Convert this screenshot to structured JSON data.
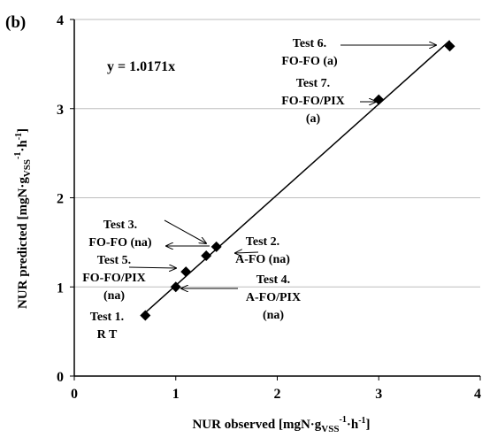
{
  "chart_data": {
    "type": "scatter",
    "panel_label": "(b)",
    "equation": "y = 1.0171x",
    "xlabel": {
      "main": "NUR observed [mgN·g",
      "sub": "VSS",
      "sup": "-1",
      "tail": "·h",
      "tail_sup": "-1",
      "close": "]"
    },
    "ylabel": {
      "main": "NUR predicted [mgN·g",
      "sub": "VSS",
      "sup": "-1",
      "tail": "·h",
      "tail_sup": "-1",
      "close": "]"
    },
    "xlim": [
      0,
      4
    ],
    "ylim": [
      0,
      4
    ],
    "x_ticks": [
      "0",
      "1",
      "2",
      "3",
      "4"
    ],
    "y_ticks": [
      "0",
      "1",
      "2",
      "3",
      "4"
    ],
    "gridlines": "horizontal",
    "trendline": {
      "slope": 1.0171,
      "x_range": [
        0.7,
        3.7
      ]
    },
    "points": [
      {
        "x": 0.7,
        "y": 0.68
      },
      {
        "x": 1.0,
        "y": 1.0
      },
      {
        "x": 1.1,
        "y": 1.17
      },
      {
        "x": 1.3,
        "y": 1.35
      },
      {
        "x": 1.4,
        "y": 1.45
      },
      {
        "x": 3.0,
        "y": 3.1
      },
      {
        "x": 3.7,
        "y": 3.7
      }
    ],
    "annotations": [
      {
        "lines": [
          "Test 1.",
          "R T"
        ]
      },
      {
        "lines": [
          "Test 2.",
          "A-FO (na)"
        ]
      },
      {
        "lines": [
          "Test 3.",
          "FO-FO (na)"
        ]
      },
      {
        "lines": [
          "Test 4.",
          "A-FO/PIX",
          "(na)"
        ]
      },
      {
        "lines": [
          "Test 5.",
          "FO-FO/PIX",
          "(na)"
        ]
      },
      {
        "lines": [
          "Test 6.",
          "FO-FO (a)"
        ]
      },
      {
        "lines": [
          "Test 7.",
          "FO-FO/PIX",
          "(a)"
        ]
      }
    ]
  }
}
